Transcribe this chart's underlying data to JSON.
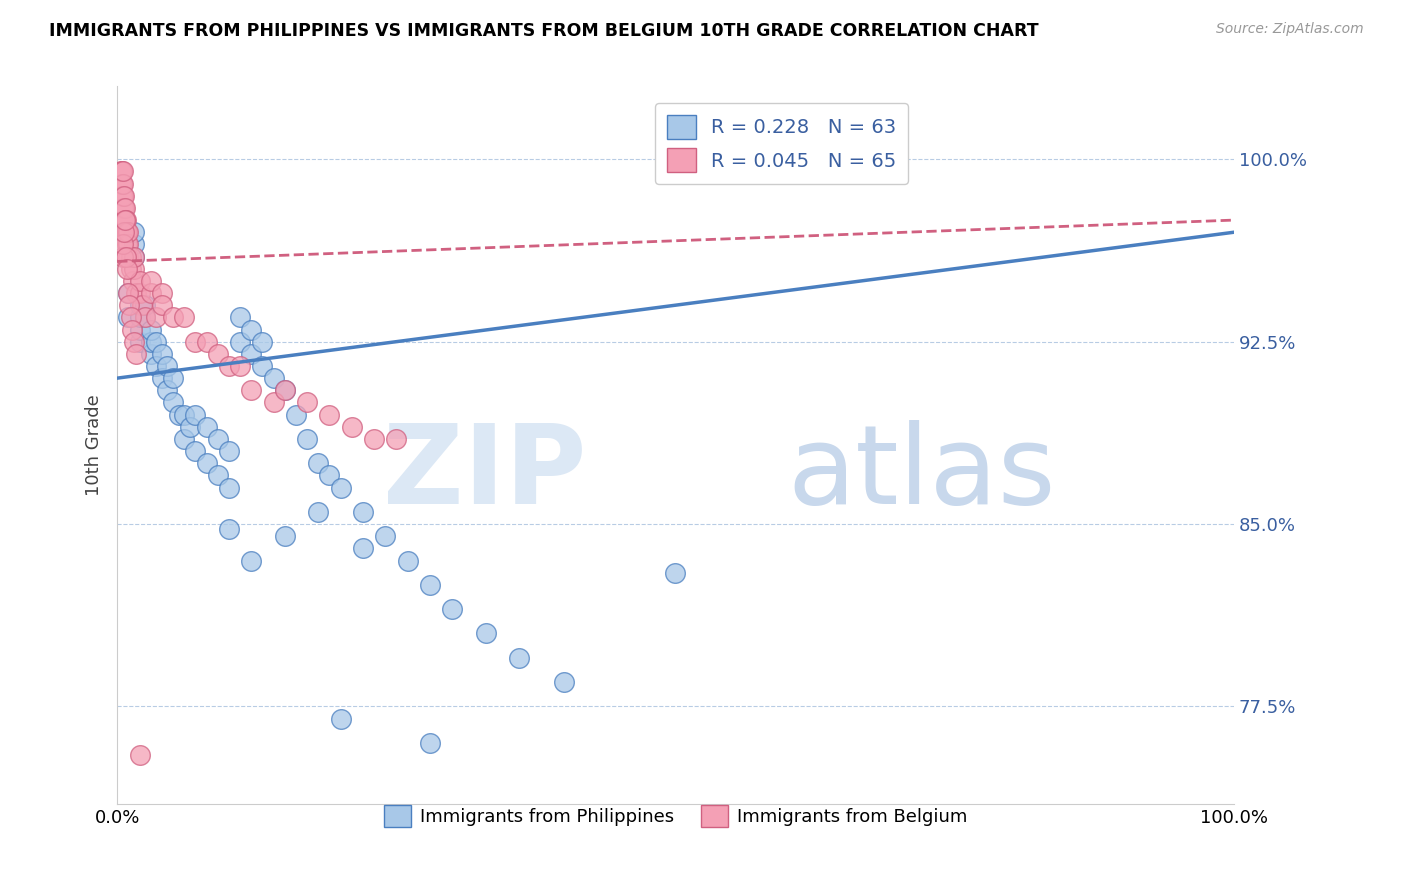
{
  "title": "IMMIGRANTS FROM PHILIPPINES VS IMMIGRANTS FROM BELGIUM 10TH GRADE CORRELATION CHART",
  "source": "Source: ZipAtlas.com",
  "ylabel": "10th Grade",
  "xlim": [
    0.0,
    1.0
  ],
  "ylim": [
    0.735,
    1.03
  ],
  "yticks": [
    0.775,
    0.85,
    0.925,
    1.0
  ],
  "ytick_labels": [
    "77.5%",
    "85.0%",
    "92.5%",
    "100.0%"
  ],
  "r_philippines": 0.228,
  "n_philippines": 63,
  "r_belgium": 0.045,
  "n_belgium": 65,
  "color_philippines": "#a8c8e8",
  "color_belgium": "#f4a0b5",
  "trendline_philippines": "#4a7fc0",
  "trendline_belgium": "#d06080",
  "phil_trendline_start_y": 0.91,
  "phil_trendline_end_y": 0.97,
  "belg_trendline_start_y": 0.958,
  "belg_trendline_end_y": 0.975,
  "philippines_x": [
    0.01,
    0.01,
    0.015,
    0.015,
    0.015,
    0.02,
    0.02,
    0.02,
    0.02,
    0.025,
    0.025,
    0.03,
    0.03,
    0.03,
    0.035,
    0.035,
    0.04,
    0.04,
    0.045,
    0.045,
    0.05,
    0.05,
    0.055,
    0.06,
    0.06,
    0.065,
    0.07,
    0.07,
    0.08,
    0.08,
    0.09,
    0.09,
    0.1,
    0.1,
    0.11,
    0.11,
    0.12,
    0.12,
    0.13,
    0.13,
    0.14,
    0.15,
    0.16,
    0.17,
    0.18,
    0.19,
    0.2,
    0.22,
    0.24,
    0.26,
    0.28,
    0.3,
    0.33,
    0.36,
    0.4,
    0.22,
    0.18,
    0.15,
    0.12,
    0.1,
    0.5,
    0.28,
    0.2
  ],
  "philippines_y": [
    0.935,
    0.945,
    0.96,
    0.965,
    0.97,
    0.925,
    0.93,
    0.935,
    0.94,
    0.935,
    0.94,
    0.92,
    0.925,
    0.93,
    0.915,
    0.925,
    0.91,
    0.92,
    0.905,
    0.915,
    0.9,
    0.91,
    0.895,
    0.885,
    0.895,
    0.89,
    0.88,
    0.895,
    0.875,
    0.89,
    0.87,
    0.885,
    0.865,
    0.88,
    0.925,
    0.935,
    0.92,
    0.93,
    0.915,
    0.925,
    0.91,
    0.905,
    0.895,
    0.885,
    0.875,
    0.87,
    0.865,
    0.855,
    0.845,
    0.835,
    0.825,
    0.815,
    0.805,
    0.795,
    0.785,
    0.84,
    0.855,
    0.845,
    0.835,
    0.848,
    0.83,
    0.76,
    0.77
  ],
  "belgium_x": [
    0.003,
    0.003,
    0.004,
    0.004,
    0.004,
    0.005,
    0.005,
    0.005,
    0.005,
    0.005,
    0.005,
    0.006,
    0.006,
    0.007,
    0.007,
    0.008,
    0.008,
    0.009,
    0.009,
    0.01,
    0.01,
    0.01,
    0.012,
    0.012,
    0.014,
    0.015,
    0.015,
    0.017,
    0.02,
    0.02,
    0.022,
    0.025,
    0.03,
    0.03,
    0.035,
    0.04,
    0.04,
    0.05,
    0.06,
    0.07,
    0.08,
    0.09,
    0.1,
    0.11,
    0.12,
    0.14,
    0.15,
    0.17,
    0.19,
    0.21,
    0.23,
    0.25,
    0.005,
    0.005,
    0.006,
    0.007,
    0.008,
    0.009,
    0.01,
    0.011,
    0.012,
    0.013,
    0.015,
    0.017,
    0.02
  ],
  "belgium_y": [
    0.99,
    0.995,
    0.985,
    0.99,
    0.995,
    0.975,
    0.98,
    0.985,
    0.99,
    0.995,
    0.97,
    0.98,
    0.985,
    0.975,
    0.98,
    0.97,
    0.975,
    0.965,
    0.97,
    0.96,
    0.965,
    0.97,
    0.955,
    0.96,
    0.95,
    0.955,
    0.96,
    0.945,
    0.945,
    0.95,
    0.94,
    0.935,
    0.945,
    0.95,
    0.935,
    0.945,
    0.94,
    0.935,
    0.935,
    0.925,
    0.925,
    0.92,
    0.915,
    0.915,
    0.905,
    0.9,
    0.905,
    0.9,
    0.895,
    0.89,
    0.885,
    0.885,
    0.96,
    0.965,
    0.97,
    0.975,
    0.96,
    0.955,
    0.945,
    0.94,
    0.935,
    0.93,
    0.925,
    0.92,
    0.755
  ],
  "watermark_zip": "ZIP",
  "watermark_atlas": "atlas"
}
